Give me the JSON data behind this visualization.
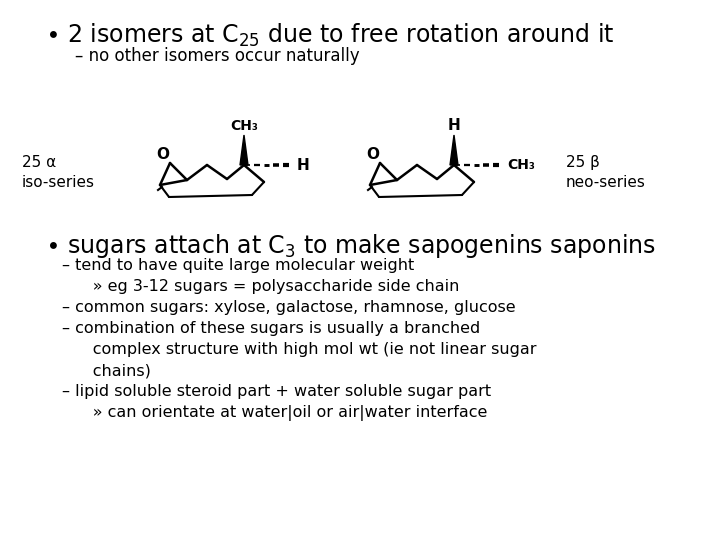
{
  "bg_color": "#ffffff",
  "font_family": "DejaVu Sans",
  "title_fontsize": 17,
  "subtitle_fontsize": 12,
  "bullet2_fontsize": 17,
  "body_fontsize": 11.5,
  "label_fontsize": 11,
  "struct_fontsize": 10,
  "label_left": "25 α\niso-series",
  "label_right": "25 β\nneo-series",
  "lines": [
    "– tend to have quite large molecular weight",
    "      » eg 3-12 sugars = polysaccharide side chain",
    "– common sugars: xylose, galactose, rhamnose, glucose",
    "– combination of these sugars is usually a branched",
    "      complex structure with high mol wt (ie not linear sugar",
    "      chains)",
    "– lipid soluble steroid part + water soluble sugar part",
    "      » can orientate at water|oil or air|water interface"
  ]
}
